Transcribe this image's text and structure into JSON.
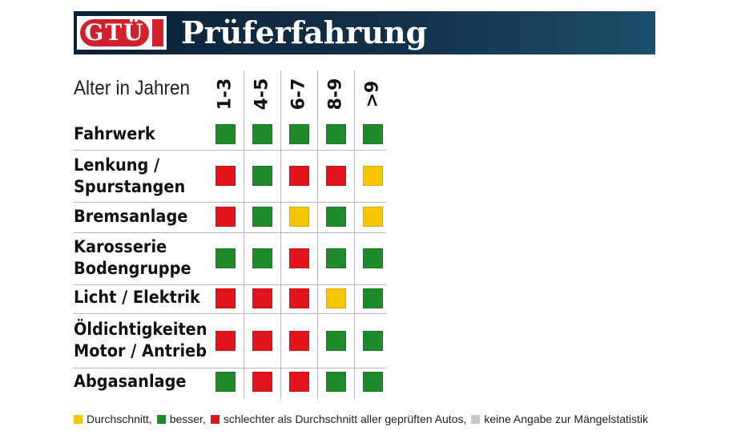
{
  "header": {
    "logo_text": "GTÜ",
    "title": "Prüferfahrung"
  },
  "chart_data": {
    "type": "table",
    "x_label": "Alter in Jahren",
    "columns": [
      "1-3",
      "4-5",
      "6-7",
      "8-9",
      ">9"
    ],
    "rows": [
      {
        "lines": [
          "Fahrwerk"
        ],
        "ratings": [
          "besser",
          "besser",
          "besser",
          "besser",
          "besser"
        ]
      },
      {
        "lines": [
          "Lenkung /",
          "Spurstangen"
        ],
        "ratings": [
          "schlechter",
          "besser",
          "schlechter",
          "schlechter",
          "durchschnitt"
        ]
      },
      {
        "lines": [
          "Bremsanlage"
        ],
        "ratings": [
          "schlechter",
          "besser",
          "durchschnitt",
          "besser",
          "durchschnitt"
        ]
      },
      {
        "lines": [
          "Karosserie",
          "Bodengruppe"
        ],
        "ratings": [
          "besser",
          "besser",
          "schlechter",
          "besser",
          "besser"
        ]
      },
      {
        "lines": [
          "Licht / Elektrik"
        ],
        "ratings": [
          "schlechter",
          "schlechter",
          "schlechter",
          "durchschnitt",
          "besser"
        ]
      },
      {
        "lines": [
          "Öldichtigkeiten",
          "Motor / Antrieb"
        ],
        "ratings": [
          "schlechter",
          "schlechter",
          "schlechter",
          "besser",
          "besser"
        ]
      },
      {
        "lines": [
          "Abgasanlage"
        ],
        "ratings": [
          "besser",
          "schlechter",
          "schlechter",
          "besser",
          "besser"
        ]
      }
    ],
    "colors": {
      "durchschnitt": "#f7c600",
      "besser": "#1e8a2a",
      "schlechter": "#e3141b",
      "keine_angabe": "#c8c8c8"
    },
    "legend": [
      {
        "key": "durchschnitt",
        "text": "Durchschnitt,"
      },
      {
        "key": "besser",
        "text": "besser,"
      },
      {
        "key": "schlechter",
        "text": "schlechter als Durchschnitt aller geprüften Autos,"
      },
      {
        "key": "keine_angabe",
        "text": "keine Angabe zur Mängelstatistik"
      }
    ]
  }
}
